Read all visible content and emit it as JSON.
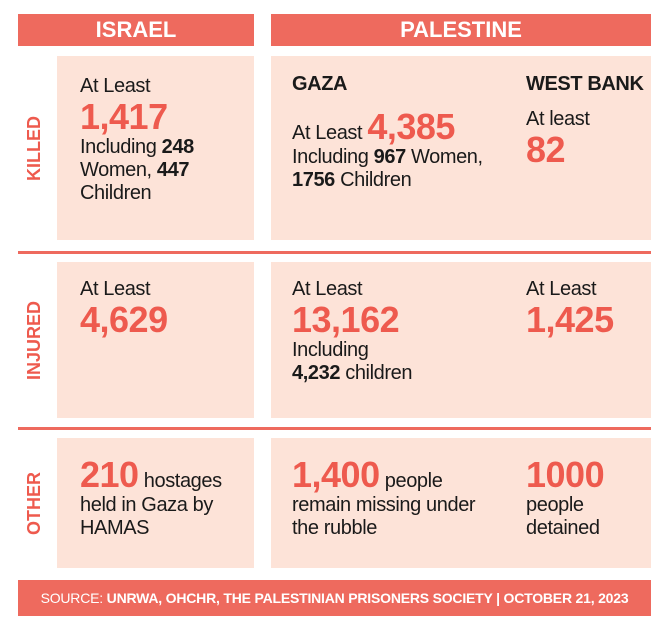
{
  "header": {
    "israel": "ISRAEL",
    "palestine": "PALESTINE"
  },
  "rows": [
    {
      "label": "KILLED",
      "israel": [
        "At Least",
        "1,417",
        "Including",
        "248",
        "Women,",
        "447",
        "Children"
      ],
      "gaza": [
        "GAZA",
        "At Least",
        "4,385",
        "Including",
        "967",
        "Women,",
        "1756",
        "Children"
      ],
      "west_bank": [
        "WEST BANK",
        "At least",
        "82"
      ]
    },
    {
      "label": "INJURED",
      "israel": [
        "At Least",
        "4,629"
      ],
      "gaza": [
        "At Least",
        "13,162",
        "Including",
        "4,232",
        "children"
      ],
      "west_bank": [
        "At Least",
        "1,425"
      ]
    },
    {
      "label": "OTHER",
      "israel": [
        "210",
        "hostages",
        "held in Gaza by",
        "HAMAS"
      ],
      "gaza": [
        "1,400",
        "people",
        "remain missing under",
        "the rubble"
      ],
      "west_bank": [
        "1000",
        "people",
        "detained"
      ]
    }
  ],
  "footer": {
    "prefix": "SOURCE:",
    "text": "UNRWA, OHCHR, THE PALESTINIAN PRISONERS SOCIETY | OCTOBER 21, 2023"
  }
}
